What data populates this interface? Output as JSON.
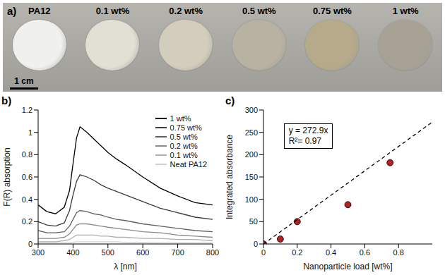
{
  "photo": {
    "panel": "a)",
    "scale_bar": "1 cm",
    "samples": [
      {
        "label": "PA12",
        "color": "#f0f0ed"
      },
      {
        "label": "0.1 wt%",
        "color": "#e2e0d4"
      },
      {
        "label": "0.2 wt%",
        "color": "#d3cdbd"
      },
      {
        "label": "0.5 wt%",
        "color": "#b8b2a3"
      },
      {
        "label": "0.75 wt%",
        "color": "#b6aa8b"
      },
      {
        "label": "1 wt%",
        "color": "#a7a295"
      }
    ]
  },
  "chart_data": [
    {
      "panel": "b)",
      "type": "line",
      "x_label": "λ [nm]",
      "y_label": "F(R) absorption",
      "x": [
        300,
        325,
        350,
        375,
        390,
        400,
        410,
        420,
        440,
        460,
        480,
        500,
        525,
        550,
        600,
        650,
        700,
        750,
        800
      ],
      "series": [
        {
          "name": "1 wt%",
          "color": "#000000",
          "values": [
            0.35,
            0.29,
            0.27,
            0.33,
            0.48,
            0.72,
            0.95,
            1.05,
            1.0,
            0.94,
            0.88,
            0.82,
            0.76,
            0.71,
            0.6,
            0.5,
            0.43,
            0.37,
            0.35
          ]
        },
        {
          "name": "0.75 wt%",
          "color": "#3a3a3a",
          "values": [
            0.2,
            0.17,
            0.16,
            0.19,
            0.3,
            0.44,
            0.56,
            0.62,
            0.6,
            0.57,
            0.53,
            0.5,
            0.47,
            0.44,
            0.38,
            0.32,
            0.28,
            0.24,
            0.22
          ]
        },
        {
          "name": "0.5 wt%",
          "color": "#606060",
          "values": [
            0.12,
            0.1,
            0.1,
            0.11,
            0.16,
            0.22,
            0.28,
            0.3,
            0.29,
            0.27,
            0.26,
            0.24,
            0.22,
            0.21,
            0.18,
            0.16,
            0.14,
            0.12,
            0.11
          ]
        },
        {
          "name": "0.2 wt%",
          "color": "#8a8a8a",
          "values": [
            0.05,
            0.05,
            0.05,
            0.06,
            0.09,
            0.13,
            0.17,
            0.18,
            0.18,
            0.17,
            0.16,
            0.15,
            0.14,
            0.13,
            0.11,
            0.1,
            0.08,
            0.07,
            0.06
          ]
        },
        {
          "name": "0.1 wt%",
          "color": "#b0b0b0",
          "values": [
            0.02,
            0.02,
            0.02,
            0.03,
            0.04,
            0.06,
            0.08,
            0.08,
            0.08,
            0.08,
            0.07,
            0.07,
            0.06,
            0.06,
            0.05,
            0.05,
            0.04,
            0.04,
            0.03
          ]
        },
        {
          "name": "Neat PA12",
          "color": "#d0d0d0",
          "values": [
            0.01,
            0.01,
            0.01,
            0.01,
            0.01,
            0.015,
            0.02,
            0.02,
            0.02,
            0.02,
            0.02,
            0.02,
            0.02,
            0.015,
            0.015,
            0.01,
            0.01,
            0.01,
            0.01
          ]
        }
      ],
      "xlim": [
        300,
        800
      ],
      "xticks": [
        300,
        400,
        500,
        600,
        700,
        800
      ],
      "ylim": [
        0,
        1.2
      ],
      "yticks": [
        0,
        0.2,
        0.4,
        0.6,
        0.8,
        1,
        1.2
      ],
      "legend": "upper right"
    },
    {
      "panel": "c)",
      "type": "scatter",
      "x_label": "Nanoparticle load [wt%]",
      "y_label": "Integrated absorbance",
      "series": [
        {
          "type": "scatter",
          "color": "#b22222",
          "marker": "circle",
          "x": [
            0,
            0.1,
            0.2,
            0.5,
            0.75
          ],
          "values": [
            0,
            11,
            50,
            88,
            182
          ]
        },
        {
          "type": "line",
          "color": "#000000",
          "line_style": "dashed",
          "x": [
            0,
            1
          ],
          "values": [
            0,
            272.9
          ]
        }
      ],
      "annotations": [
        "y = 272.9x",
        "R²= 0.97"
      ],
      "xlim": [
        0,
        1
      ],
      "xticks": [
        0,
        0.2,
        0.4,
        0.6,
        0.8
      ],
      "ylim": [
        0,
        300
      ],
      "yticks": [
        0,
        50,
        100,
        150,
        200,
        250,
        300
      ]
    }
  ]
}
